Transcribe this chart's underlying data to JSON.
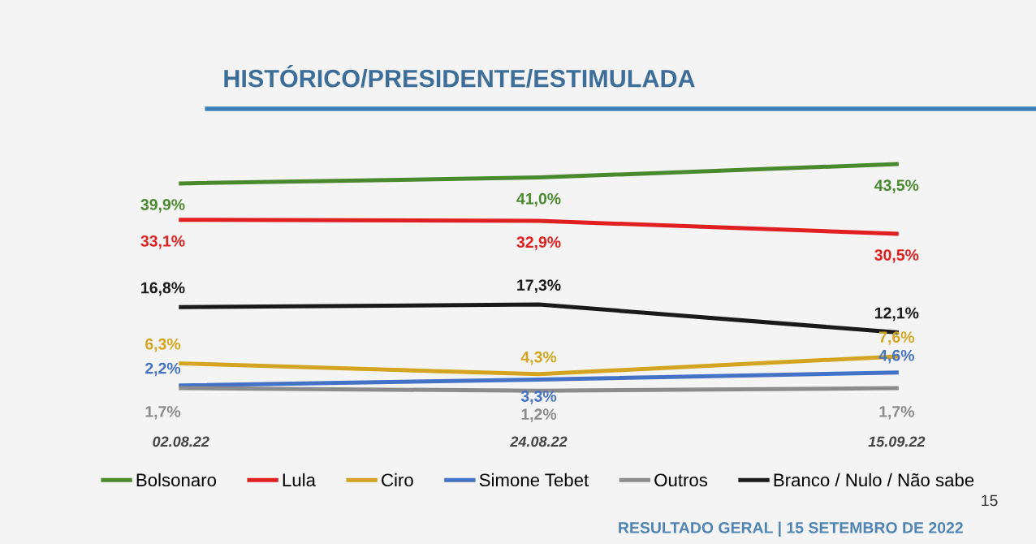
{
  "chart_data": {
    "type": "line",
    "title": "HISTÓRICO/PRESIDENTE/ESTIMULADA",
    "categories": [
      "02.08.22",
      "24.08.22",
      "15.09.22"
    ],
    "tick_labels": "x",
    "grid": false,
    "legend": "bottom",
    "marker": "none",
    "line_style": "solid",
    "data_labels": true,
    "series": [
      {
        "name": "Bolsonaro",
        "color": "#4a8a2f",
        "values": [
          39.9,
          41.0,
          43.5
        ],
        "value_labels": [
          "39,9%",
          "41,0%",
          "43,5%"
        ]
      },
      {
        "name": "Lula",
        "color": "#e02020",
        "values": [
          33.1,
          32.9,
          30.5
        ],
        "value_labels": [
          "33,1%",
          "32,9%",
          "30,5%"
        ]
      },
      {
        "name": "Ciro",
        "color": "#d4a520",
        "values": [
          6.3,
          4.3,
          7.6
        ],
        "value_labels": [
          "6,3%",
          "4,3%",
          "7,6%"
        ]
      },
      {
        "name": "Simone Tebet",
        "color": "#4472c4",
        "values": [
          2.2,
          3.3,
          4.6
        ],
        "value_labels": [
          "2,2%",
          "3,3%",
          "4,6%"
        ]
      },
      {
        "name": "Outros",
        "color": "#8c8c8c",
        "values": [
          1.7,
          1.2,
          1.7
        ],
        "value_labels": [
          "1,7%",
          "1,2%",
          "1,7%"
        ]
      },
      {
        "name": "Branco / Nulo / Não sabe",
        "color": "#1a1a1a",
        "values": [
          16.8,
          17.3,
          12.1
        ],
        "value_labels": [
          "16,8%",
          "17,3%",
          "12,1%"
        ]
      }
    ],
    "annotations": [
      "15",
      "RESULTADO GERAL | 15 SETEMBRO DE 2022"
    ]
  }
}
